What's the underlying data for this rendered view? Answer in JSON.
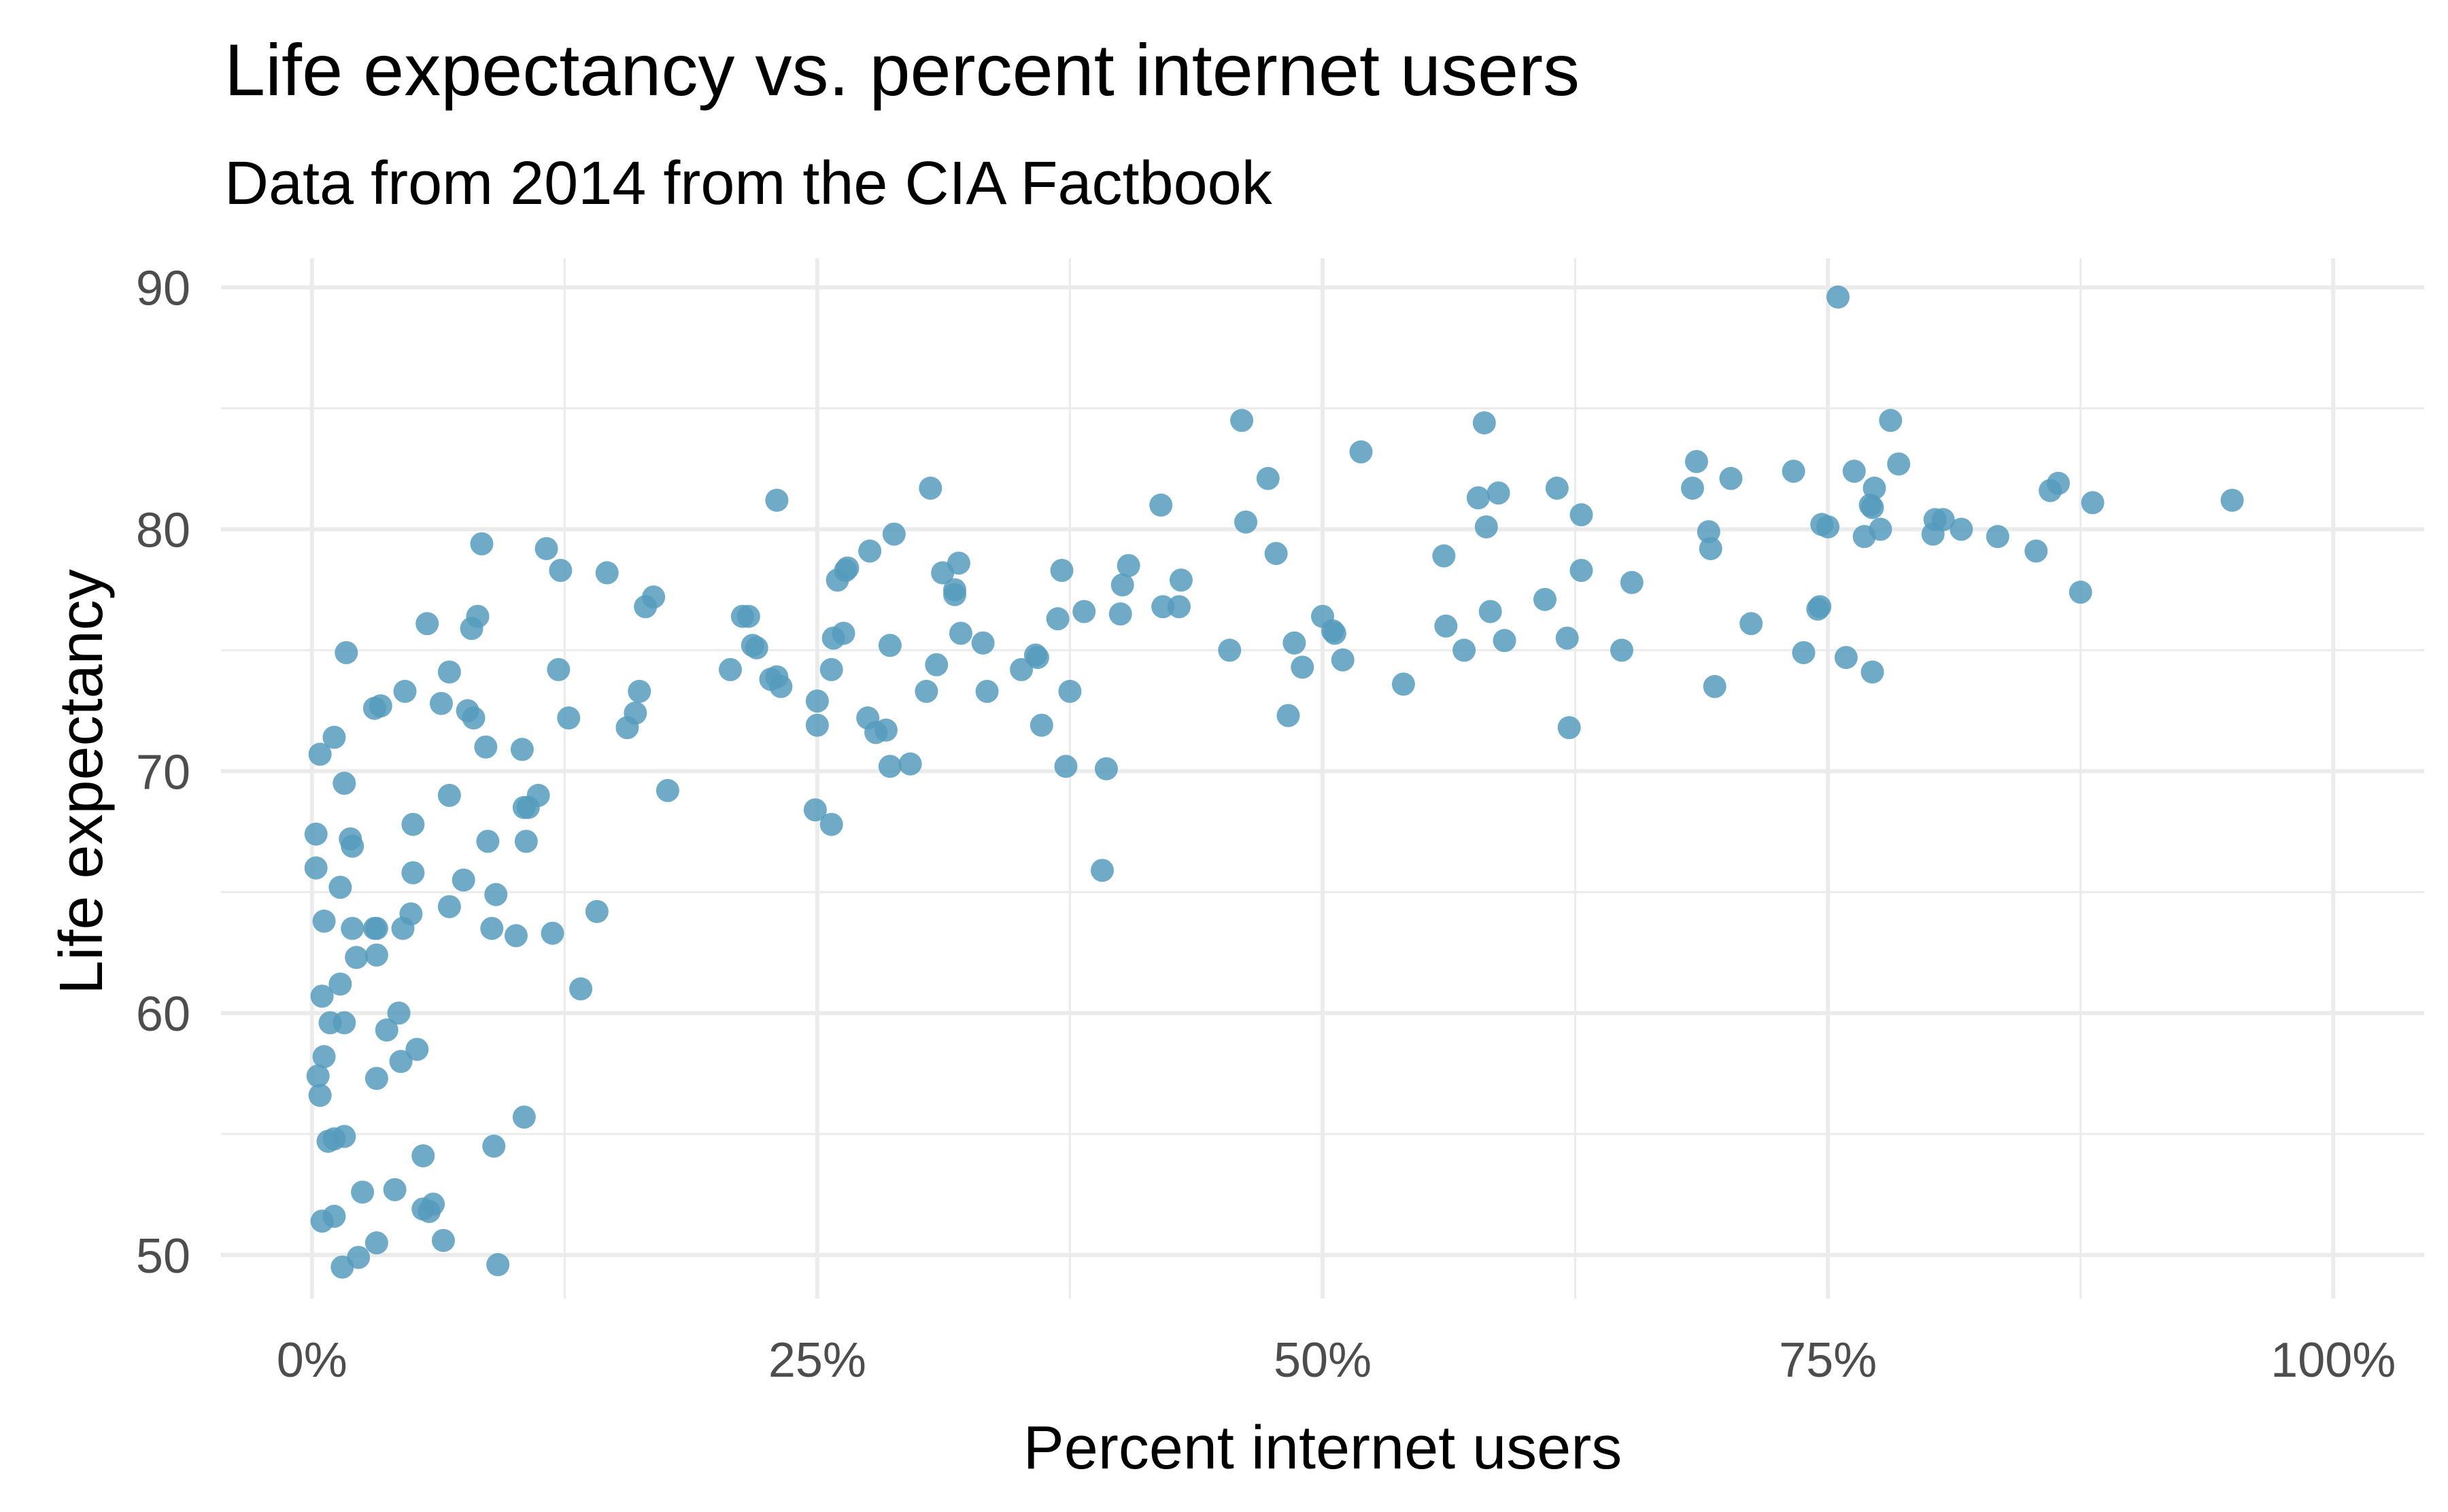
{
  "chart_data": {
    "type": "scatter",
    "title": "Life expectancy vs. percent internet users",
    "subtitle": "Data from 2014 from the CIA Factbook",
    "xlabel": "Percent internet users",
    "ylabel": "Life expectancy",
    "xlim": [
      -0.045,
      1.045
    ],
    "ylim": [
      48.2,
      91.2
    ],
    "x_ticks": [
      0,
      0.25,
      0.5,
      0.75,
      1.0
    ],
    "x_tick_labels": [
      "0%",
      "25%",
      "50%",
      "75%",
      "100%"
    ],
    "y_ticks": [
      50,
      60,
      70,
      80,
      90
    ],
    "y_tick_labels": [
      "50",
      "60",
      "70",
      "80",
      "90"
    ],
    "grid": true,
    "legend": "none",
    "point_color": "#569bbd",
    "points": [
      [
        0.002,
        67.4
      ],
      [
        0.002,
        66.0
      ],
      [
        0.003,
        57.4
      ],
      [
        0.004,
        56.6
      ],
      [
        0.004,
        70.7
      ],
      [
        0.005,
        60.7
      ],
      [
        0.005,
        51.4
      ],
      [
        0.006,
        63.8
      ],
      [
        0.006,
        58.2
      ],
      [
        0.008,
        54.7
      ],
      [
        0.009,
        59.6
      ],
      [
        0.011,
        54.8
      ],
      [
        0.011,
        71.4
      ],
      [
        0.011,
        51.6
      ],
      [
        0.014,
        65.2
      ],
      [
        0.014,
        61.2
      ],
      [
        0.015,
        49.5
      ],
      [
        0.016,
        59.6
      ],
      [
        0.016,
        69.5
      ],
      [
        0.016,
        54.9
      ],
      [
        0.017,
        74.9
      ],
      [
        0.019,
        67.2
      ],
      [
        0.02,
        66.9
      ],
      [
        0.02,
        63.5
      ],
      [
        0.022,
        62.3
      ],
      [
        0.023,
        49.9
      ],
      [
        0.025,
        52.6
      ],
      [
        0.031,
        72.6
      ],
      [
        0.031,
        63.5
      ],
      [
        0.032,
        63.5
      ],
      [
        0.032,
        50.5
      ],
      [
        0.032,
        57.3
      ],
      [
        0.032,
        62.4
      ],
      [
        0.034,
        72.7
      ],
      [
        0.037,
        59.3
      ],
      [
        0.041,
        52.7
      ],
      [
        0.043,
        60.0
      ],
      [
        0.044,
        58.0
      ],
      [
        0.045,
        63.5
      ],
      [
        0.046,
        73.3
      ],
      [
        0.049,
        64.1
      ],
      [
        0.05,
        67.8
      ],
      [
        0.05,
        65.8
      ],
      [
        0.052,
        58.5
      ],
      [
        0.055,
        54.1
      ],
      [
        0.055,
        51.9
      ],
      [
        0.057,
        76.1
      ],
      [
        0.058,
        51.8
      ],
      [
        0.06,
        52.1
      ],
      [
        0.064,
        72.8
      ],
      [
        0.065,
        50.6
      ],
      [
        0.068,
        69.0
      ],
      [
        0.068,
        74.1
      ],
      [
        0.068,
        64.4
      ],
      [
        0.075,
        65.5
      ],
      [
        0.077,
        72.5
      ],
      [
        0.079,
        75.9
      ],
      [
        0.08,
        72.2
      ],
      [
        0.082,
        76.4
      ],
      [
        0.084,
        79.4
      ],
      [
        0.086,
        71.0
      ],
      [
        0.087,
        67.1
      ],
      [
        0.089,
        63.5
      ],
      [
        0.09,
        54.5
      ],
      [
        0.091,
        64.9
      ],
      [
        0.092,
        49.6
      ],
      [
        0.101,
        63.2
      ],
      [
        0.104,
        70.9
      ],
      [
        0.105,
        68.5
      ],
      [
        0.105,
        55.7
      ],
      [
        0.106,
        67.1
      ],
      [
        0.107,
        68.5
      ],
      [
        0.112,
        69.0
      ],
      [
        0.116,
        79.2
      ],
      [
        0.119,
        63.3
      ],
      [
        0.122,
        74.2
      ],
      [
        0.123,
        78.3
      ],
      [
        0.127,
        72.2
      ],
      [
        0.133,
        61.0
      ],
      [
        0.141,
        64.2
      ],
      [
        0.146,
        78.2
      ],
      [
        0.156,
        71.8
      ],
      [
        0.16,
        72.4
      ],
      [
        0.162,
        73.3
      ],
      [
        0.165,
        76.8
      ],
      [
        0.169,
        77.2
      ],
      [
        0.176,
        69.2
      ],
      [
        0.207,
        74.2
      ],
      [
        0.213,
        76.4
      ],
      [
        0.216,
        76.4
      ],
      [
        0.218,
        75.2
      ],
      [
        0.22,
        75.1
      ],
      [
        0.227,
        73.8
      ],
      [
        0.23,
        81.2
      ],
      [
        0.23,
        73.9
      ],
      [
        0.232,
        73.5
      ],
      [
        0.249,
        68.4
      ],
      [
        0.25,
        72.9
      ],
      [
        0.25,
        71.9
      ],
      [
        0.257,
        67.8
      ],
      [
        0.257,
        74.2
      ],
      [
        0.258,
        75.5
      ],
      [
        0.26,
        77.9
      ],
      [
        0.263,
        75.7
      ],
      [
        0.264,
        78.3
      ],
      [
        0.265,
        78.4
      ],
      [
        0.275,
        72.2
      ],
      [
        0.276,
        79.1
      ],
      [
        0.279,
        71.6
      ],
      [
        0.284,
        71.7
      ],
      [
        0.286,
        70.2
      ],
      [
        0.286,
        75.2
      ],
      [
        0.288,
        79.8
      ],
      [
        0.296,
        70.3
      ],
      [
        0.304,
        73.3
      ],
      [
        0.306,
        81.7
      ],
      [
        0.309,
        74.4
      ],
      [
        0.312,
        78.2
      ],
      [
        0.318,
        77.5
      ],
      [
        0.318,
        77.3
      ],
      [
        0.32,
        78.6
      ],
      [
        0.321,
        75.7
      ],
      [
        0.332,
        75.3
      ],
      [
        0.334,
        73.3
      ],
      [
        0.351,
        74.2
      ],
      [
        0.358,
        74.8
      ],
      [
        0.359,
        74.7
      ],
      [
        0.361,
        71.9
      ],
      [
        0.369,
        76.3
      ],
      [
        0.371,
        78.3
      ],
      [
        0.373,
        70.2
      ],
      [
        0.375,
        73.3
      ],
      [
        0.382,
        76.6
      ],
      [
        0.391,
        65.9
      ],
      [
        0.393,
        70.1
      ],
      [
        0.4,
        76.5
      ],
      [
        0.401,
        77.7
      ],
      [
        0.404,
        78.5
      ],
      [
        0.42,
        81.0
      ],
      [
        0.421,
        76.8
      ],
      [
        0.429,
        76.8
      ],
      [
        0.43,
        77.9
      ],
      [
        0.454,
        75.0
      ],
      [
        0.46,
        84.5
      ],
      [
        0.462,
        80.3
      ],
      [
        0.473,
        82.1
      ],
      [
        0.477,
        79.0
      ],
      [
        0.483,
        72.3
      ],
      [
        0.486,
        75.3
      ],
      [
        0.49,
        74.3
      ],
      [
        0.5,
        76.4
      ],
      [
        0.505,
        75.8
      ],
      [
        0.506,
        75.7
      ],
      [
        0.51,
        74.6
      ],
      [
        0.519,
        83.2
      ],
      [
        0.54,
        73.6
      ],
      [
        0.56,
        78.9
      ],
      [
        0.561,
        76.0
      ],
      [
        0.57,
        75.0
      ],
      [
        0.577,
        81.3
      ],
      [
        0.58,
        84.4
      ],
      [
        0.581,
        80.1
      ],
      [
        0.583,
        76.6
      ],
      [
        0.587,
        81.5
      ],
      [
        0.59,
        75.4
      ],
      [
        0.61,
        77.1
      ],
      [
        0.616,
        81.7
      ],
      [
        0.621,
        75.5
      ],
      [
        0.622,
        71.8
      ],
      [
        0.628,
        80.6
      ],
      [
        0.628,
        78.3
      ],
      [
        0.648,
        75.0
      ],
      [
        0.653,
        77.8
      ],
      [
        0.683,
        81.7
      ],
      [
        0.685,
        82.8
      ],
      [
        0.691,
        79.9
      ],
      [
        0.692,
        79.2
      ],
      [
        0.694,
        73.5
      ],
      [
        0.702,
        82.1
      ],
      [
        0.712,
        76.1
      ],
      [
        0.733,
        82.4
      ],
      [
        0.738,
        74.9
      ],
      [
        0.745,
        76.7
      ],
      [
        0.746,
        76.8
      ],
      [
        0.747,
        80.2
      ],
      [
        0.75,
        80.1
      ],
      [
        0.755,
        89.6
      ],
      [
        0.759,
        74.7
      ],
      [
        0.763,
        82.4
      ],
      [
        0.768,
        79.7
      ],
      [
        0.771,
        81.0
      ],
      [
        0.772,
        74.1
      ],
      [
        0.773,
        81.7
      ],
      [
        0.776,
        80.0
      ],
      [
        0.781,
        84.5
      ],
      [
        0.785,
        82.7
      ],
      [
        0.802,
        79.8
      ],
      [
        0.803,
        80.4
      ],
      [
        0.807,
        80.4
      ],
      [
        0.816,
        80.0
      ],
      [
        0.834,
        79.7
      ],
      [
        0.853,
        79.1
      ],
      [
        0.86,
        81.6
      ],
      [
        0.864,
        81.9
      ],
      [
        0.875,
        77.4
      ],
      [
        0.881,
        81.1
      ],
      [
        0.95,
        81.2
      ],
      [
        0.772,
        80.9
      ]
    ]
  }
}
